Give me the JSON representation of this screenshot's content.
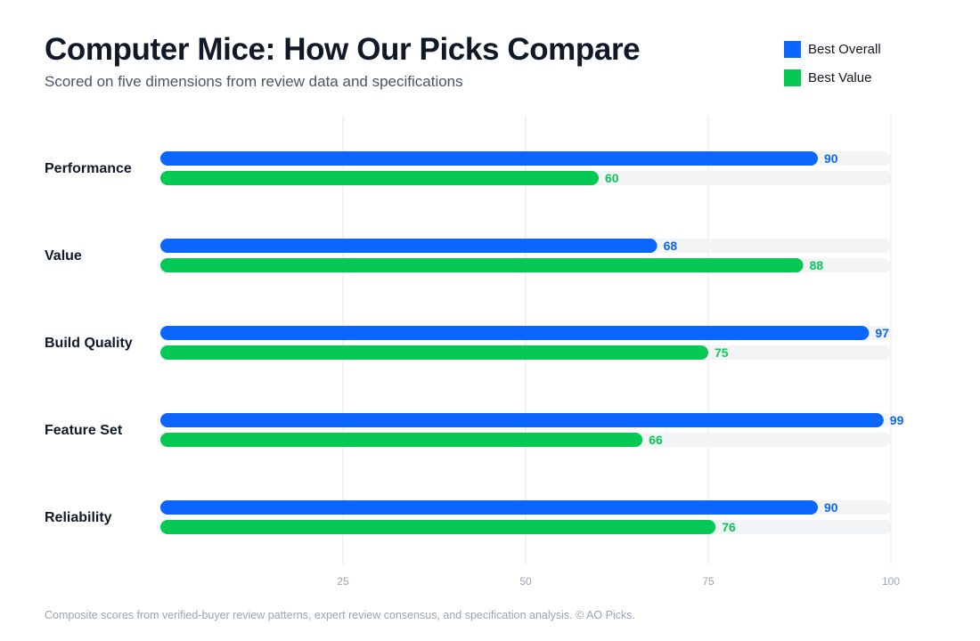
{
  "header": {
    "title": "Computer Mice: How Our Picks Compare",
    "subtitle": "Scored on five dimensions from review data and specifications"
  },
  "legend": [
    {
      "label": "Best Overall",
      "color": "#0a66ff"
    },
    {
      "label": "Best Value",
      "color": "#06c955"
    }
  ],
  "footer": {
    "note": "Composite scores from verified-buyer review patterns, expert review consensus, and specification analysis. © AO Picks."
  },
  "chart_data": {
    "type": "bar",
    "orientation": "horizontal",
    "title": "Computer Mice: How Our Picks Compare",
    "subtitle": "Scored on five dimensions from review data and specifications",
    "categories": [
      "Performance",
      "Value",
      "Build Quality",
      "Feature Set",
      "Reliability"
    ],
    "series": [
      {
        "name": "Best Overall",
        "color": "#0a66ff",
        "values": [
          90,
          68,
          97,
          99,
          90
        ]
      },
      {
        "name": "Best Value",
        "color": "#06c955",
        "values": [
          60,
          88,
          75,
          66,
          76
        ]
      }
    ],
    "xlim": [
      0,
      100
    ],
    "xticks": [
      "25",
      "50",
      "75",
      "100"
    ],
    "track_color": "#f3f4f6",
    "gridlines": "vertical",
    "legend_position": "top-right",
    "data_labels": true
  }
}
